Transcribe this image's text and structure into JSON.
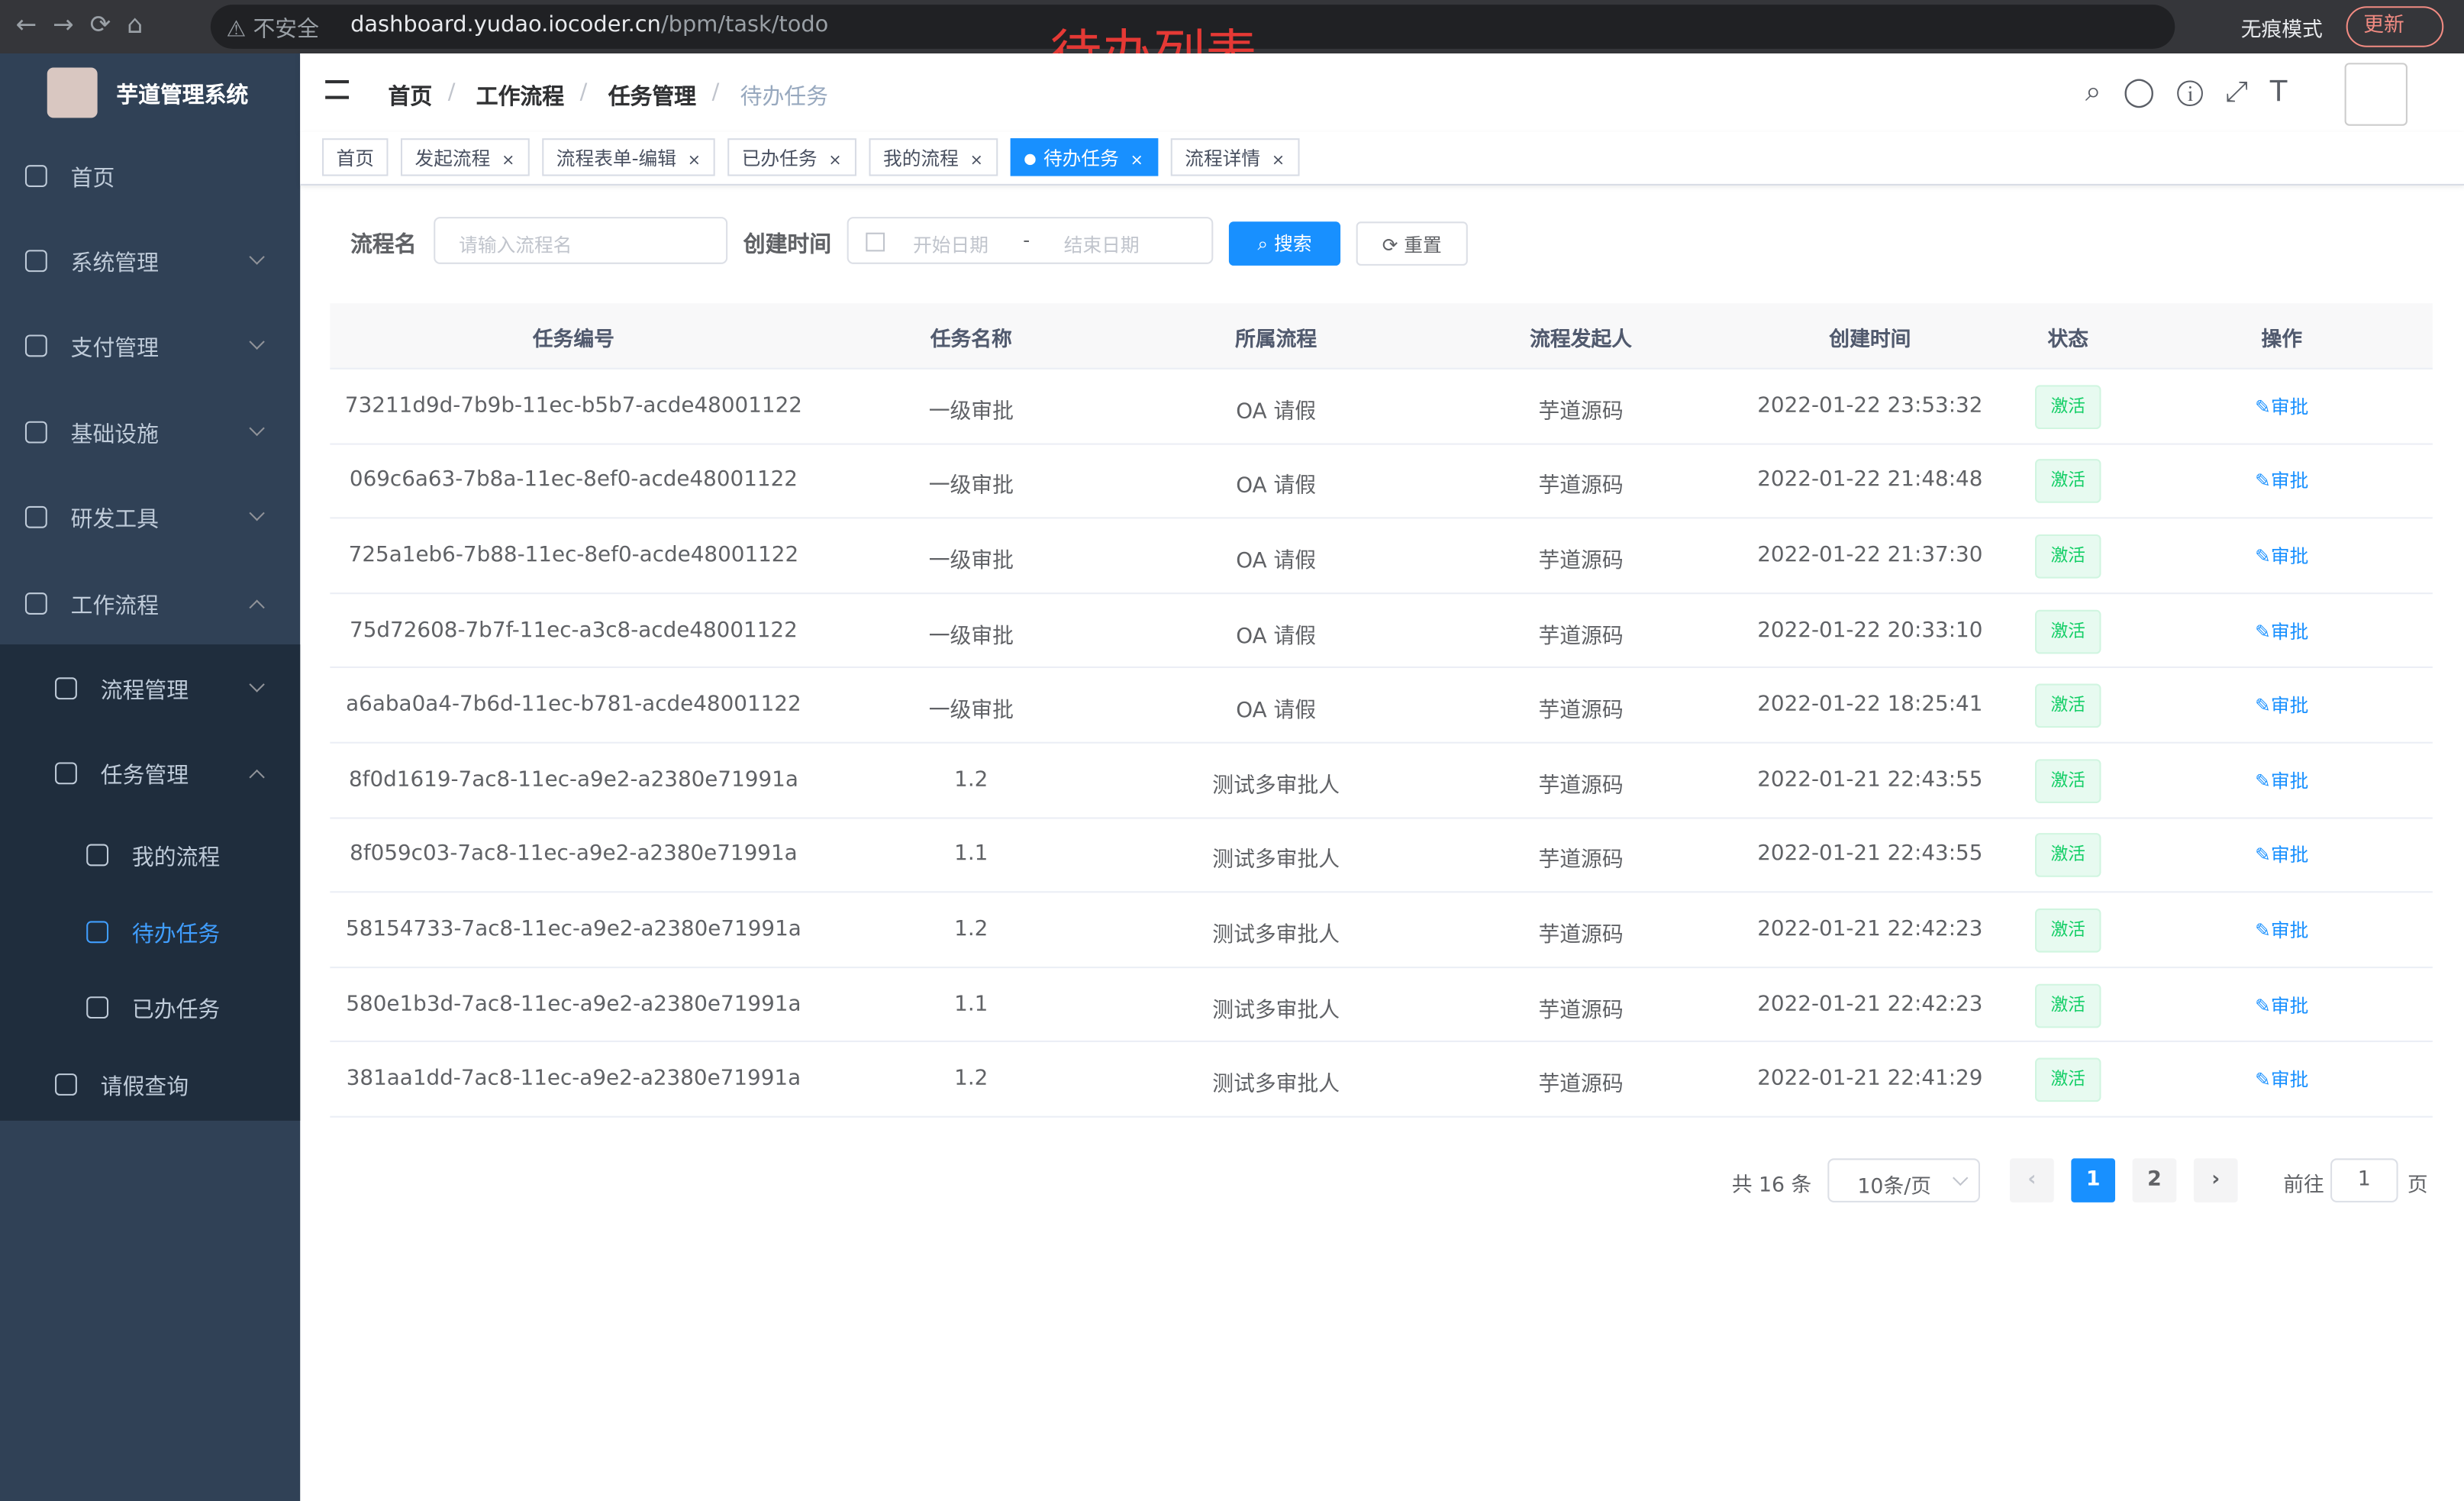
{
  "browser": {
    "security": "不安全",
    "url_host": "dashboard.yudao.iocoder.cn",
    "url_path": "/bpm/task/todo",
    "incognito": "无痕模式",
    "update": "更新"
  },
  "annotation": "待办列表",
  "sidebar": {
    "title": "芋道管理系统",
    "menu": [
      "首页",
      "系统管理",
      "支付管理",
      "基础设施",
      "研发工具",
      "工作流程",
      "流程管理",
      "任务管理",
      "我的流程",
      "待办任务",
      "已办任务",
      "请假查询"
    ]
  },
  "breadcrumb": [
    "首页",
    "工作流程",
    "任务管理",
    "待办任务"
  ],
  "tags": [
    "首页",
    "发起流程",
    "流程表单-编辑",
    "已办任务",
    "我的流程",
    "待办任务",
    "流程详情"
  ],
  "search": {
    "name_label": "流程名",
    "name_placeholder": "请输入流程名",
    "time_label": "创建时间",
    "start_placeholder": "开始日期",
    "range_sep": "-",
    "end_placeholder": "结束日期",
    "search_button": "搜索",
    "reset_button": "重置"
  },
  "table": {
    "columns": [
      "任务编号",
      "任务名称",
      "所属流程",
      "流程发起人",
      "创建时间",
      "状态",
      "操作"
    ],
    "rows": [
      [
        "73211d9d-7b9b-11ec-b5b7-acde48001122",
        "一级审批",
        "OA 请假",
        "芋道源码",
        "2022-01-22 23:53:32",
        "激活",
        "审批"
      ],
      [
        "069c6a63-7b8a-11ec-8ef0-acde48001122",
        "一级审批",
        "OA 请假",
        "芋道源码",
        "2022-01-22 21:48:48",
        "激活",
        "审批"
      ],
      [
        "725a1eb6-7b88-11ec-8ef0-acde48001122",
        "一级审批",
        "OA 请假",
        "芋道源码",
        "2022-01-22 21:37:30",
        "激活",
        "审批"
      ],
      [
        "75d72608-7b7f-11ec-a3c8-acde48001122",
        "一级审批",
        "OA 请假",
        "芋道源码",
        "2022-01-22 20:33:10",
        "激活",
        "审批"
      ],
      [
        "a6aba0a4-7b6d-11ec-b781-acde48001122",
        "一级审批",
        "OA 请假",
        "芋道源码",
        "2022-01-22 18:25:41",
        "激活",
        "审批"
      ],
      [
        "8f0d1619-7ac8-11ec-a9e2-a2380e71991a",
        "1.2",
        "测试多审批人",
        "芋道源码",
        "2022-01-21 22:43:55",
        "激活",
        "审批"
      ],
      [
        "8f059c03-7ac8-11ec-a9e2-a2380e71991a",
        "1.1",
        "测试多审批人",
        "芋道源码",
        "2022-01-21 22:43:55",
        "激活",
        "审批"
      ],
      [
        "58154733-7ac8-11ec-a9e2-a2380e71991a",
        "1.2",
        "测试多审批人",
        "芋道源码",
        "2022-01-21 22:42:23",
        "激活",
        "审批"
      ],
      [
        "580e1b3d-7ac8-11ec-a9e2-a2380e71991a",
        "1.1",
        "测试多审批人",
        "芋道源码",
        "2022-01-21 22:42:23",
        "激活",
        "审批"
      ],
      [
        "381aa1dd-7ac8-11ec-a9e2-a2380e71991a",
        "1.2",
        "测试多审批人",
        "芋道源码",
        "2022-01-21 22:41:29",
        "激活",
        "审批"
      ]
    ]
  },
  "pagination": {
    "total": "共 16 条",
    "page_size": "10条/页",
    "pages": [
      "1",
      "2"
    ],
    "goto": "前往",
    "goto_value": "1",
    "goto_unit": "页"
  }
}
